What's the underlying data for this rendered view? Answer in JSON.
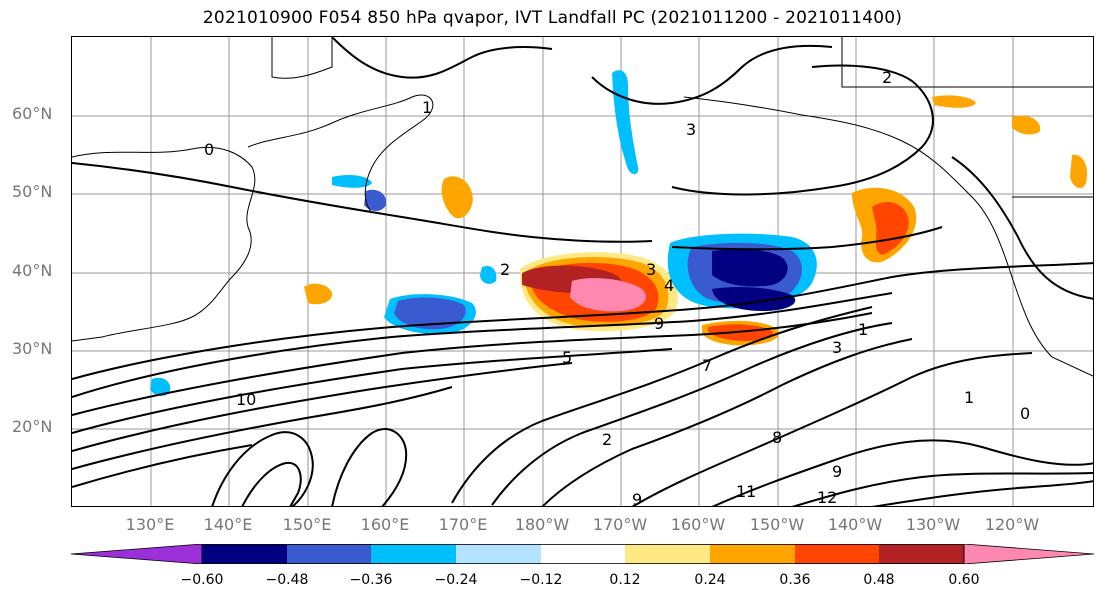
{
  "title": "2021010900 F054 850 hPa qvapor, IVT Landfall PC (2021011200 - 2021011400)",
  "lat_labels": [
    "60°N",
    "50°N",
    "40°N",
    "30°N",
    "20°N"
  ],
  "lon_labels": [
    "130°E",
    "140°E",
    "150°E",
    "160°E",
    "170°E",
    "180°W",
    "170°W",
    "160°W",
    "150°W",
    "140°W",
    "130°W",
    "120°W"
  ],
  "contour_labels": [
    "2",
    "3",
    "4",
    "9",
    "5",
    "3",
    "1",
    "2",
    "0",
    "12",
    "9",
    "8",
    "7",
    "10",
    "1",
    "0",
    "2",
    "1",
    "3",
    "11",
    "9"
  ],
  "colorbar": {
    "ticks": [
      "−0.60",
      "−0.48",
      "−0.36",
      "−0.24",
      "−0.12",
      "0.12",
      "0.24",
      "0.36",
      "0.48",
      "0.60"
    ],
    "colors": [
      "#9b30d9",
      "#000080",
      "#3a5bd0",
      "#00bfff",
      "#b3e3ff",
      "#ffffff",
      "#ffe985",
      "#ffa500",
      "#ff4500",
      "#b22222",
      "#ff88b0"
    ]
  }
}
